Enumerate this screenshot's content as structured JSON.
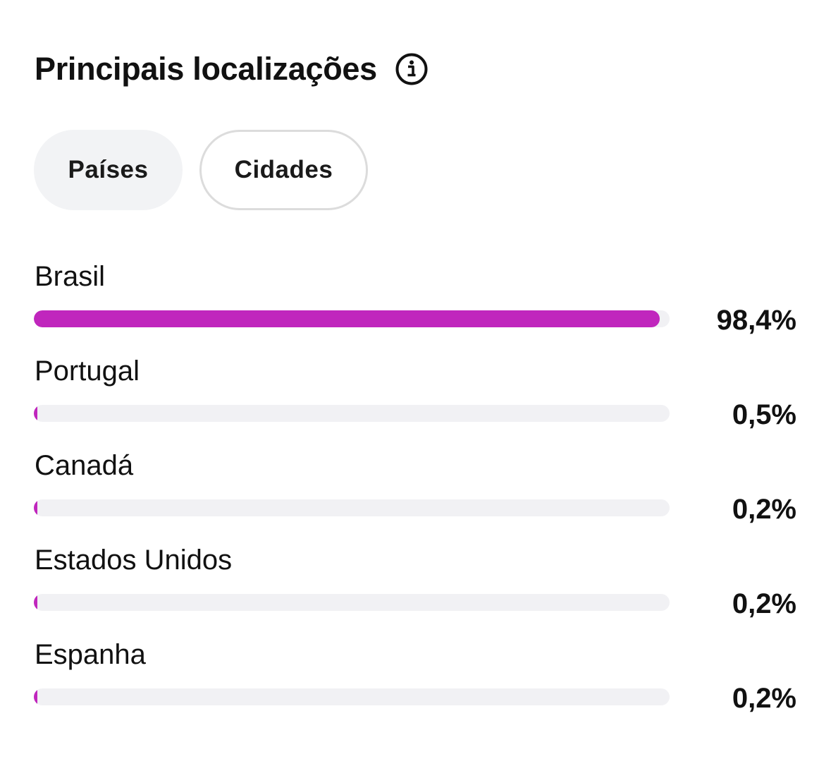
{
  "header": {
    "title": "Principais localizações",
    "info_icon": "info-icon"
  },
  "tabs": [
    {
      "label": "Países",
      "selected": true
    },
    {
      "label": "Cidades",
      "selected": false
    }
  ],
  "accent_color": "#c026bd",
  "locations": [
    {
      "name": "Brasil",
      "percent_label": "98,4%",
      "percent": 98.4
    },
    {
      "name": "Portugal",
      "percent_label": "0,5%",
      "percent": 0.5
    },
    {
      "name": "Canadá",
      "percent_label": "0,2%",
      "percent": 0.2
    },
    {
      "name": "Estados Unidos",
      "percent_label": "0,2%",
      "percent": 0.2
    },
    {
      "name": "Espanha",
      "percent_label": "0,2%",
      "percent": 0.2
    }
  ]
}
